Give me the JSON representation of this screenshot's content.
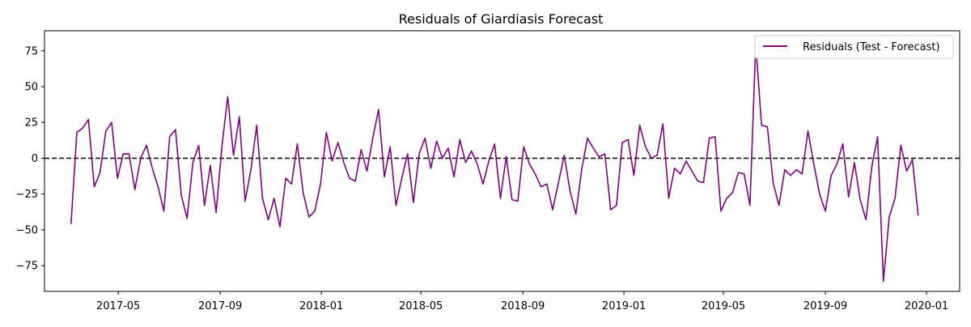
{
  "chart_data": {
    "type": "line",
    "title": "Residuals of Giardiasis Forecast",
    "xlabel": "",
    "ylabel": "",
    "x_axis": {
      "kind": "date",
      "range": [
        "2017-02-01",
        "2020-02-10"
      ],
      "ticks": [
        "2017-05-01",
        "2017-09-01",
        "2018-01-01",
        "2018-05-01",
        "2018-09-01",
        "2019-01-01",
        "2019-05-01",
        "2019-09-01",
        "2020-01-01"
      ],
      "tick_labels": [
        "2017-05",
        "2017-09",
        "2018-01",
        "2018-05",
        "2018-09",
        "2019-01",
        "2019-05",
        "2019-09",
        "2020-01"
      ]
    },
    "y_axis": {
      "range": [
        -93,
        89
      ],
      "ticks": [
        75,
        50,
        25,
        0,
        -25,
        -50,
        -75
      ],
      "tick_labels": [
        "75",
        "50",
        "25",
        "0",
        "−25",
        "−50",
        "−75"
      ]
    },
    "grid": false,
    "legend": {
      "position": "top-right",
      "entries": [
        "Residuals (Test - Forecast)"
      ]
    },
    "reference_line": {
      "y": 0,
      "style": "dashed",
      "color": "#000000"
    },
    "series": [
      {
        "name": "Residuals (Test - Forecast)",
        "color": "#800080",
        "start_date": "2017-03-05",
        "interval_days": 7,
        "values": [
          -46,
          18,
          21,
          27,
          -20,
          -10,
          19,
          25,
          -14,
          3,
          3,
          -22,
          0,
          9,
          -7,
          -20,
          -37,
          15,
          20,
          -26,
          -42,
          -3,
          9,
          -33,
          -5,
          -38,
          8,
          43,
          2,
          29,
          -30,
          -8,
          23,
          -28,
          -43,
          -28,
          -48,
          -14,
          -18,
          10,
          -24,
          -41,
          -37,
          -18,
          18,
          -2,
          11,
          -3,
          -14,
          -16,
          6,
          -9,
          14,
          34,
          -13,
          8,
          -33,
          -14,
          3,
          -31,
          3,
          14,
          -7,
          12,
          0,
          7,
          -13,
          13,
          -3,
          5,
          -4,
          -18,
          -2,
          10,
          -28,
          1,
          -29,
          -30,
          8,
          -4,
          -11,
          -20,
          -18,
          -36,
          -17,
          2,
          -23,
          -39,
          -8,
          14,
          7,
          1,
          3,
          -36,
          -33,
          11,
          13,
          -12,
          23,
          8,
          0,
          2,
          24,
          -28,
          -7,
          -11,
          -2,
          -9,
          -16,
          -17,
          14,
          15,
          -37,
          -28,
          -24,
          -10,
          -11,
          -33,
          80,
          23,
          22,
          -17,
          -33,
          -8,
          -12,
          -8,
          -11,
          19,
          -4,
          -25,
          -37,
          -12,
          -4,
          10,
          -27,
          -3,
          -29,
          -43,
          -6,
          15,
          -86,
          -41,
          -28,
          9,
          -9,
          -1,
          -40
        ]
      }
    ]
  }
}
